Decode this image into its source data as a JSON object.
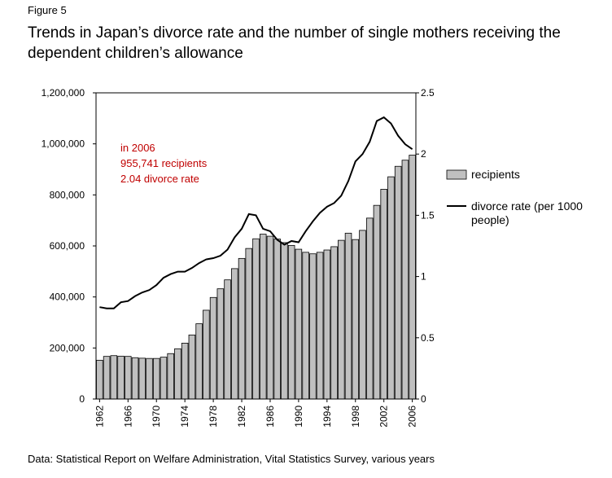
{
  "figure_label": "Figure 5",
  "title": "Trends in Japan’s divorce rate and the number of single mothers receiving the dependent children’s allowance",
  "source": "Data: Statistical Report on Welfare Administration, Vital Statistics Survey, various years",
  "colors": {
    "bar_fill": "#c0c0c0",
    "bar_stroke": "#000000",
    "line": "#000000",
    "annotation": "#c00000"
  },
  "chart_data": {
    "type": "bar",
    "x": [
      1962,
      1963,
      1964,
      1965,
      1966,
      1967,
      1968,
      1969,
      1970,
      1971,
      1972,
      1973,
      1974,
      1975,
      1976,
      1977,
      1978,
      1979,
      1980,
      1981,
      1982,
      1983,
      1984,
      1985,
      1986,
      1987,
      1988,
      1989,
      1990,
      1991,
      1992,
      1993,
      1994,
      1995,
      1996,
      1997,
      1998,
      1999,
      2000,
      2001,
      2002,
      2003,
      2004,
      2005,
      2006
    ],
    "x_tick_labels": [
      "1962",
      "1966",
      "1970",
      "1974",
      "1978",
      "1982",
      "1986",
      "1990",
      "1994",
      "1998",
      "2002",
      "2006"
    ],
    "series": [
      {
        "name": "recipients",
        "type": "bar",
        "axis": "left",
        "values": [
          152000,
          167000,
          170000,
          168000,
          167000,
          162000,
          160000,
          159000,
          159000,
          164000,
          178000,
          197000,
          219000,
          251000,
          295000,
          348000,
          398000,
          432000,
          467000,
          511000,
          551000,
          590000,
          628000,
          646000,
          638000,
          627000,
          613000,
          602000,
          587000,
          575000,
          569000,
          575000,
          584000,
          597000,
          622000,
          650000,
          625000,
          661000,
          709000,
          759000,
          822000,
          871000,
          912000,
          936000,
          955741
        ]
      },
      {
        "name": "divorce rate (per 1000 people)",
        "type": "line",
        "axis": "right",
        "values": [
          0.75,
          0.74,
          0.74,
          0.79,
          0.8,
          0.84,
          0.87,
          0.89,
          0.93,
          0.99,
          1.02,
          1.04,
          1.04,
          1.07,
          1.11,
          1.14,
          1.15,
          1.17,
          1.22,
          1.32,
          1.39,
          1.51,
          1.5,
          1.39,
          1.37,
          1.3,
          1.26,
          1.29,
          1.28,
          1.37,
          1.45,
          1.52,
          1.57,
          1.6,
          1.66,
          1.78,
          1.94,
          2.0,
          2.1,
          2.27,
          2.3,
          2.25,
          2.15,
          2.08,
          2.04
        ]
      }
    ],
    "y_left": {
      "ticks": [
        "0",
        "200,000",
        "400,000",
        "600,000",
        "800,000",
        "1,000,000",
        "1,200,000"
      ],
      "min": 0,
      "max": 1200000,
      "step": 200000
    },
    "y_right": {
      "ticks": [
        "0",
        "0.5",
        "1",
        "1.5",
        "2",
        "2.5"
      ],
      "min": 0,
      "max": 2.5,
      "step": 0.5
    },
    "legend": {
      "position": "right",
      "items": [
        "recipients",
        "divorce rate (per 1000 people)"
      ]
    },
    "annotation": {
      "lines": [
        "in 2006",
        "955,741 recipients",
        "2.04 divorce rate"
      ]
    },
    "grid": false
  }
}
